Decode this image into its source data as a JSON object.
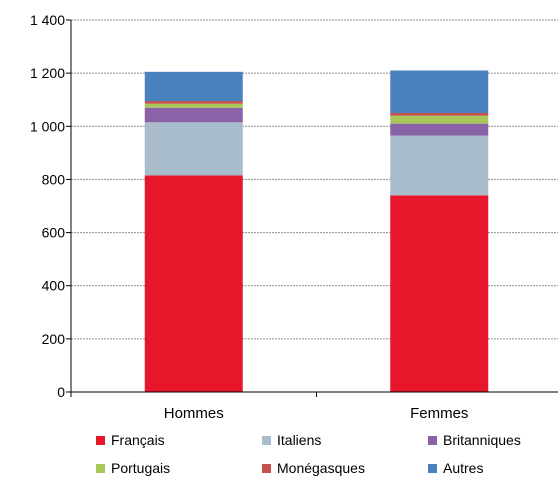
{
  "chart_data": {
    "type": "bar",
    "stacked": true,
    "categories": [
      "Hommes",
      "Femmes"
    ],
    "series": [
      {
        "name": "Français",
        "color": "#e8162b",
        "values": [
          815,
          740
        ]
      },
      {
        "name": "Italiens",
        "color": "#a8bccb",
        "values": [
          200,
          225
        ]
      },
      {
        "name": "Britanniques",
        "color": "#8a62a8",
        "values": [
          55,
          45
        ]
      },
      {
        "name": "Portugais",
        "color": "#a9c85a",
        "values": [
          15,
          30
        ]
      },
      {
        "name": "Monégasques",
        "color": "#c8504d",
        "values": [
          10,
          10
        ]
      },
      {
        "name": "Autres",
        "color": "#4a82c0",
        "values": [
          110,
          160
        ]
      }
    ],
    "ylim": [
      0,
      1400
    ],
    "yticks": [
      0,
      200,
      400,
      600,
      800,
      1000,
      1200,
      1400
    ],
    "ytick_labels": [
      "0",
      "200",
      "400",
      "600",
      "800",
      "1 000",
      "1 200",
      "1 400"
    ],
    "grid": true,
    "legend_position": "bottom",
    "title": "",
    "xlabel": "",
    "ylabel": ""
  }
}
